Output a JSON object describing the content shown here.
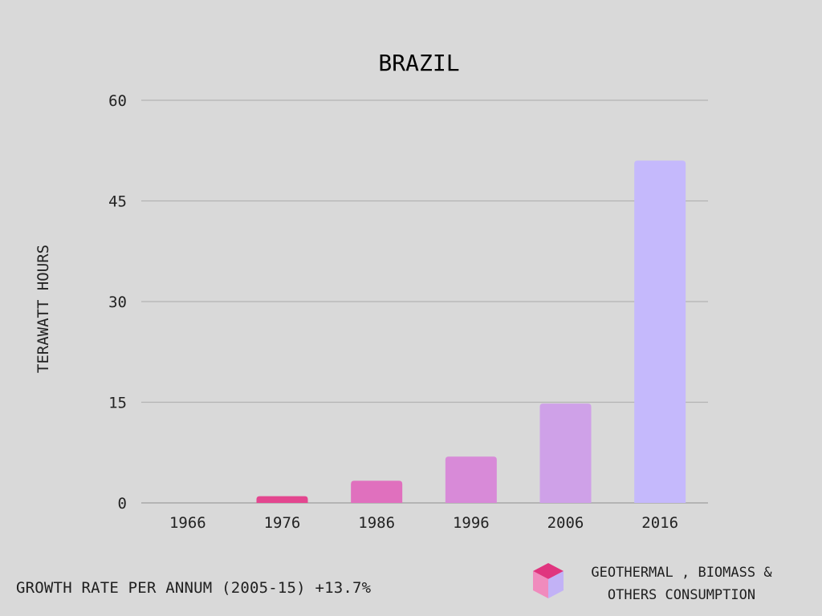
{
  "chart_data": {
    "type": "bar",
    "title": "BRAZIL",
    "ylabel": "TERAWATT HOURS",
    "xlabel": "",
    "categories": [
      "1966",
      "1976",
      "1986",
      "1996",
      "2006",
      "2016"
    ],
    "values": [
      0,
      1,
      3.3,
      6.9,
      14.8,
      51
    ],
    "ylim": [
      0,
      60
    ],
    "yticks": [
      0,
      15,
      30,
      45,
      60
    ],
    "grid": true,
    "bar_colors": [
      "#e3468f",
      "#e3468f",
      "#e070be",
      "#d88ad8",
      "#cfa1e8",
      "#c5b9fc"
    ],
    "legend": {
      "label_line1": "GEOTHERMAL , BIOMASS &",
      "label_line2": "OTHERS CONSUMPTION",
      "placement": "bottom-right"
    }
  },
  "footer": {
    "growth_text": "GROWTH RATE PER ANNUM (2005-15) +13.7%"
  }
}
